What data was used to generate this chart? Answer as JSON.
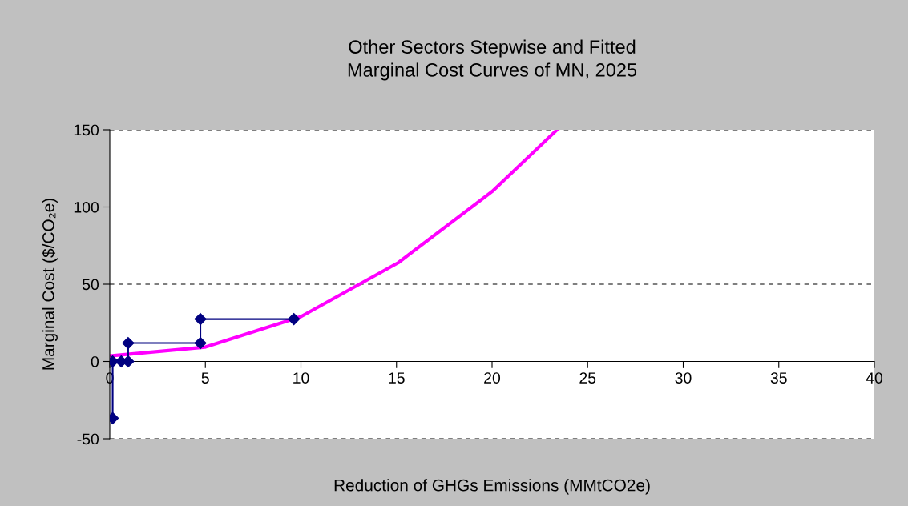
{
  "chart_data": {
    "type": "line",
    "title": "Other Sectors Stepwise and Fitted\nMarginal Cost Curves of MN, 2025",
    "xlabel": "Reduction of GHGs Emissions (MMtCO2e)",
    "ylabel": "Marginal Cost ($/CO₂e)",
    "series": [
      {
        "color": "#000080",
        "marker": "diamond",
        "x": [
          0.15,
          0.15,
          0.6,
          0.96,
          0.96,
          4.74,
          4.74,
          9.63
        ],
        "values": [
          -36.7,
          0,
          0,
          0,
          11.9,
          11.9,
          27.4,
          27.4
        ]
      },
      {
        "color": "#ff00ff",
        "marker": "none",
        "x": [
          0,
          5,
          10,
          15.1,
          20,
          23.4
        ],
        "values": [
          3.6,
          9.3,
          29,
          64,
          110,
          150
        ]
      }
    ],
    "xlim": [
      0,
      40
    ],
    "xticks": [
      0,
      5,
      10,
      15,
      20,
      25,
      30,
      35,
      40
    ],
    "ylim": [
      -50,
      150
    ],
    "yticks": [
      -50,
      0,
      50,
      100,
      150
    ],
    "grid": "y"
  }
}
